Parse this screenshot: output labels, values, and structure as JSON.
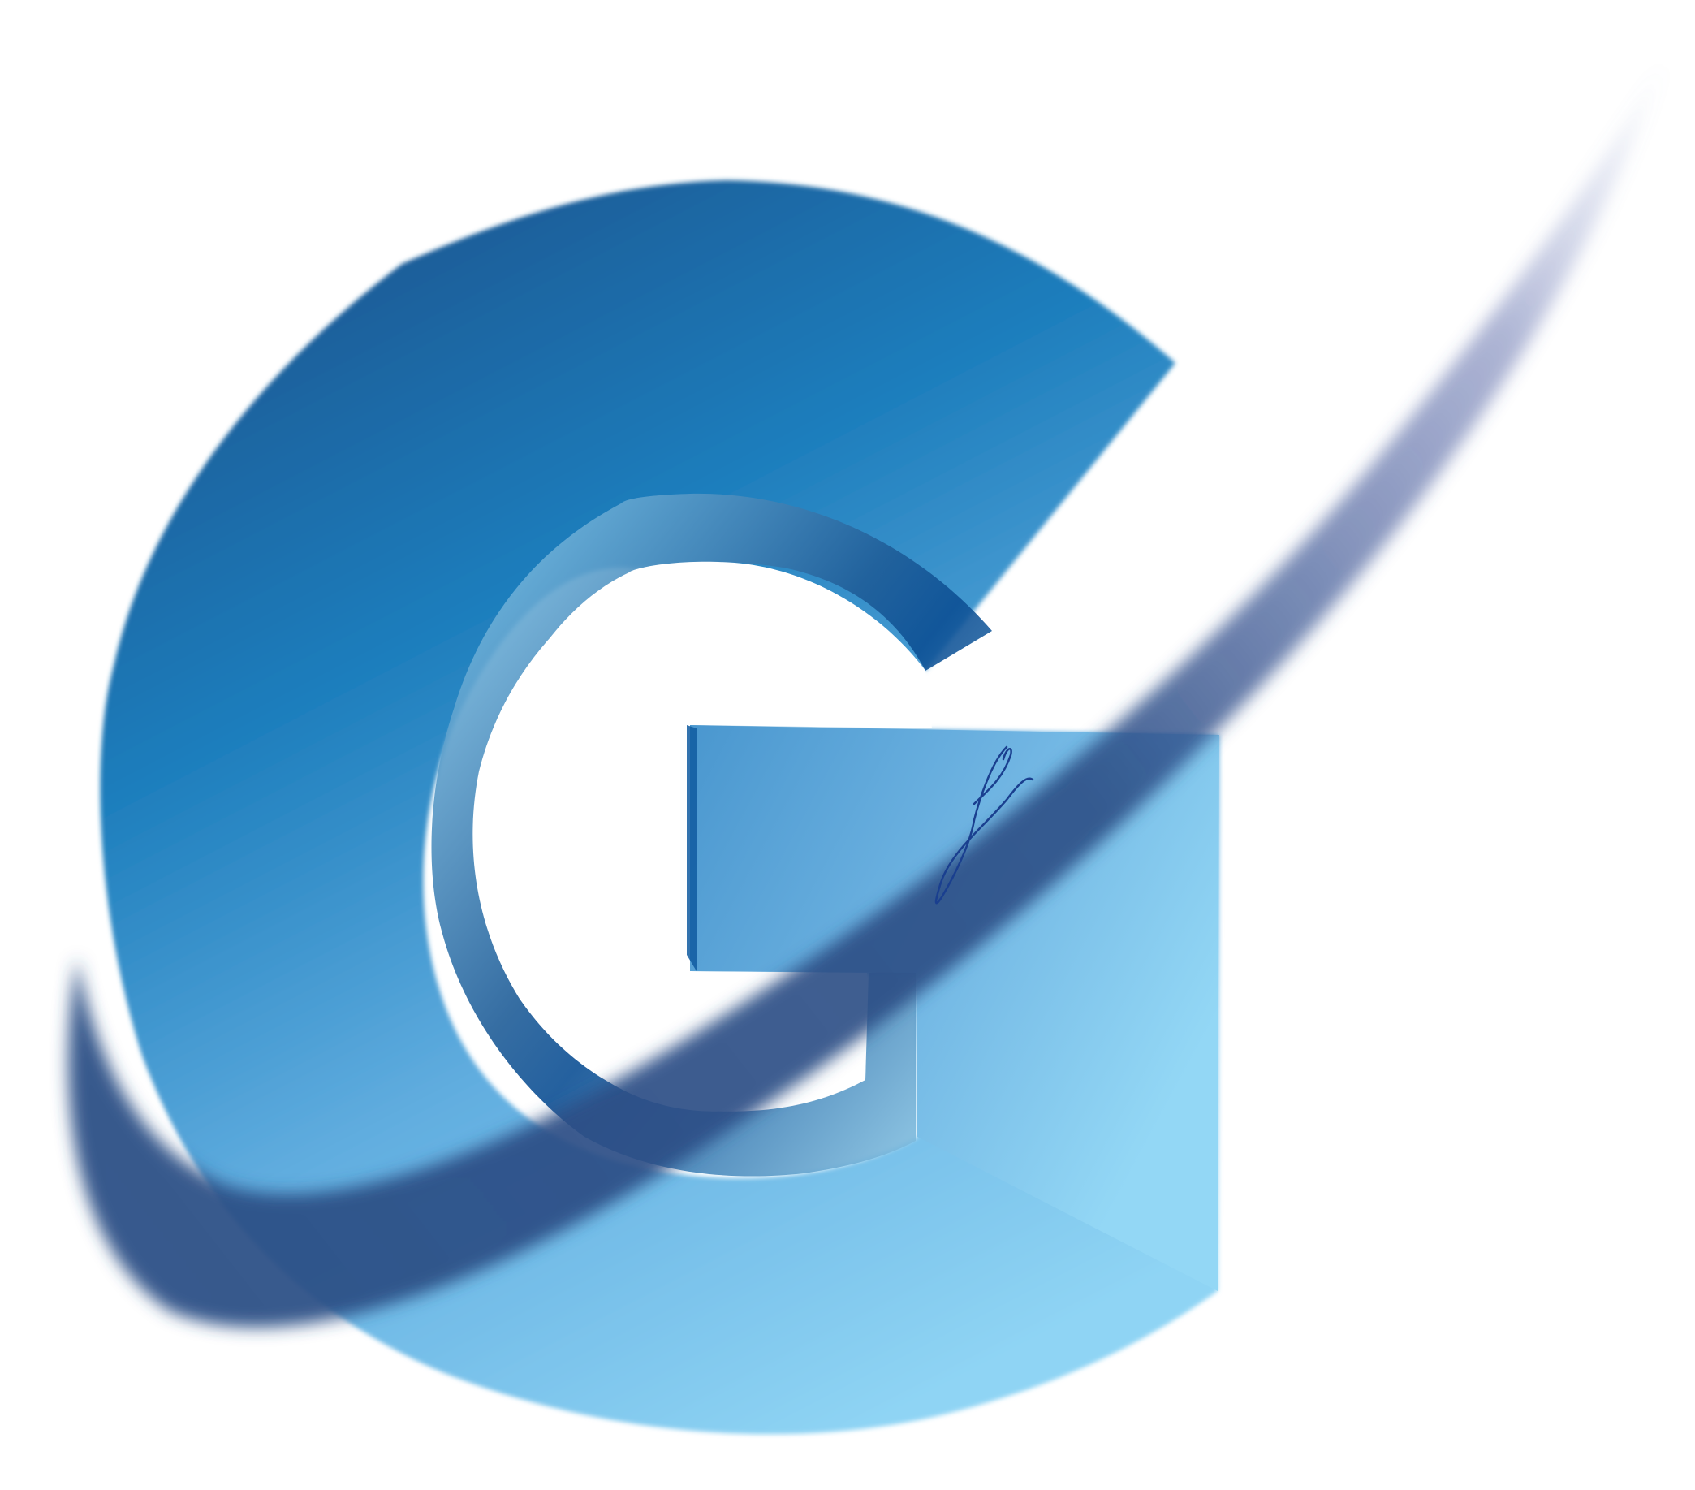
{
  "image": {
    "subject": "letter-g-logo",
    "letter": "G",
    "signature_initial": "f"
  },
  "colors": {
    "background": "#ffffff",
    "dark_blue": "#1f5d98",
    "mid_blue": "#1c7dbc",
    "light_blue": "#62aee0",
    "pale_blue": "#8fd4f4",
    "swoosh": "#2b4f86",
    "signature": "#1a3f8f"
  },
  "icons": [
    "g-logo-icon",
    "swoosh-icon",
    "signature-icon"
  ]
}
